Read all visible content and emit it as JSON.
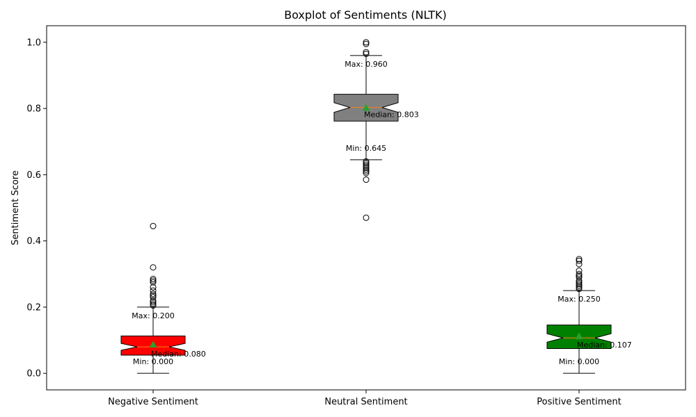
{
  "chart_data": {
    "type": "boxplot",
    "title": "Boxplot of Sentiments (NLTK)",
    "xlabel": "",
    "ylabel": "Sentiment Score",
    "ylim": [
      -0.05,
      1.05
    ],
    "yticks": [
      "0.0",
      "0.2",
      "0.4",
      "0.6",
      "0.8",
      "1.0"
    ],
    "grid": false,
    "series": [
      {
        "name": "Negative Sentiment",
        "color": "#ff0000",
        "min": 0.0,
        "q1": 0.055,
        "median": 0.08,
        "mean": 0.087,
        "q3": 0.113,
        "max": 0.2,
        "outliers": [
          0.205,
          0.21,
          0.215,
          0.22,
          0.23,
          0.235,
          0.24,
          0.25,
          0.26,
          0.275,
          0.28,
          0.285,
          0.32,
          0.445
        ],
        "labels": {
          "max": "Max: 0.200",
          "median": "Median: 0.080",
          "min": "Min: 0.000"
        }
      },
      {
        "name": "Neutral Sentiment",
        "color": "#808080",
        "min": 0.645,
        "q1": 0.762,
        "median": 0.803,
        "mean": 0.802,
        "q3": 0.843,
        "max": 0.96,
        "outliers": [
          0.47,
          0.585,
          0.605,
          0.61,
          0.615,
          0.62,
          0.625,
          0.63,
          0.635,
          0.64,
          0.965,
          0.97,
          0.995,
          1.0
        ],
        "labels": {
          "max": "Max: 0.960",
          "median": "Median: 0.803",
          "min": "Min: 0.645"
        }
      },
      {
        "name": "Positive Sentiment",
        "color": "#008000",
        "min": 0.0,
        "q1": 0.075,
        "median": 0.107,
        "mean": 0.112,
        "q3": 0.146,
        "max": 0.25,
        "outliers": [
          0.255,
          0.26,
          0.265,
          0.27,
          0.275,
          0.28,
          0.29,
          0.295,
          0.3,
          0.31,
          0.33,
          0.34,
          0.345
        ],
        "labels": {
          "max": "Max: 0.250",
          "median": "Median: 0.107",
          "min": "Min: 0.000"
        }
      }
    ]
  }
}
